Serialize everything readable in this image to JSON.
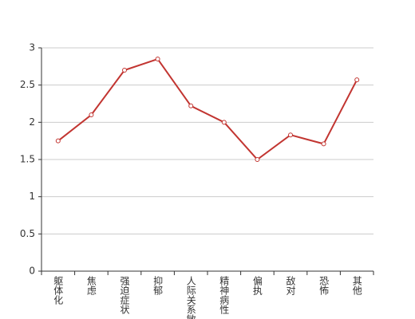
{
  "chart_data": {
    "type": "line",
    "categories": [
      "躯体化",
      "焦虑",
      "强迫症状",
      "抑郁",
      "人际关系敏感",
      "精神病性",
      "偏执",
      "敌对",
      "恐怖",
      "其他"
    ],
    "series": [
      {
        "color": "#c23531",
        "values": [
          1.75,
          2.1,
          2.7,
          2.85,
          2.22,
          2.0,
          1.5,
          1.83,
          1.71,
          2.57
        ]
      }
    ],
    "ylim": [
      0,
      3
    ],
    "yticks": [
      0,
      0.5,
      1,
      1.5,
      2,
      2.5,
      3
    ],
    "grid": true
  }
}
